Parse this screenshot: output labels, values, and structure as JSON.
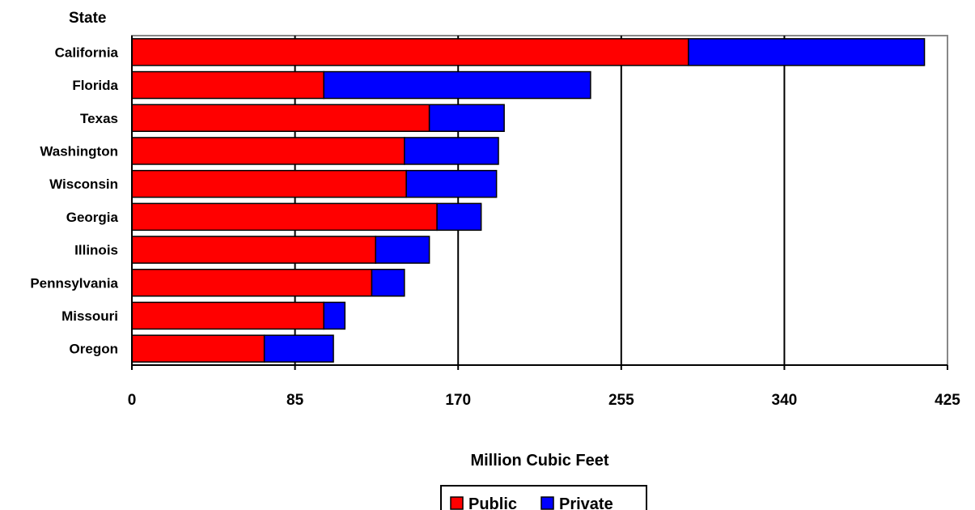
{
  "chart_data": {
    "type": "bar",
    "orientation": "horizontal",
    "stacked": true,
    "categories": [
      "California",
      "Florida",
      "Texas",
      "Washington",
      "Wisconsin",
      "Georgia",
      "Illinois",
      "Pennsylvania",
      "Missouri",
      "Oregon"
    ],
    "series": [
      {
        "name": "Public",
        "color": "#ff0000",
        "values": [
          290,
          100,
          155,
          142,
          143,
          159,
          127,
          125,
          100,
          69
        ]
      },
      {
        "name": "Private",
        "color": "#0000ff",
        "values": [
          123,
          139,
          39,
          49,
          47,
          23,
          28,
          17,
          11,
          36
        ]
      }
    ],
    "xlim": [
      0,
      425
    ],
    "xticks": [
      "0",
      "85",
      "170",
      "255",
      "340",
      "425"
    ],
    "xlabel": "Million Cubic Feet",
    "ylabel": "State",
    "grid": "vertical",
    "legend": "bottom-center"
  }
}
